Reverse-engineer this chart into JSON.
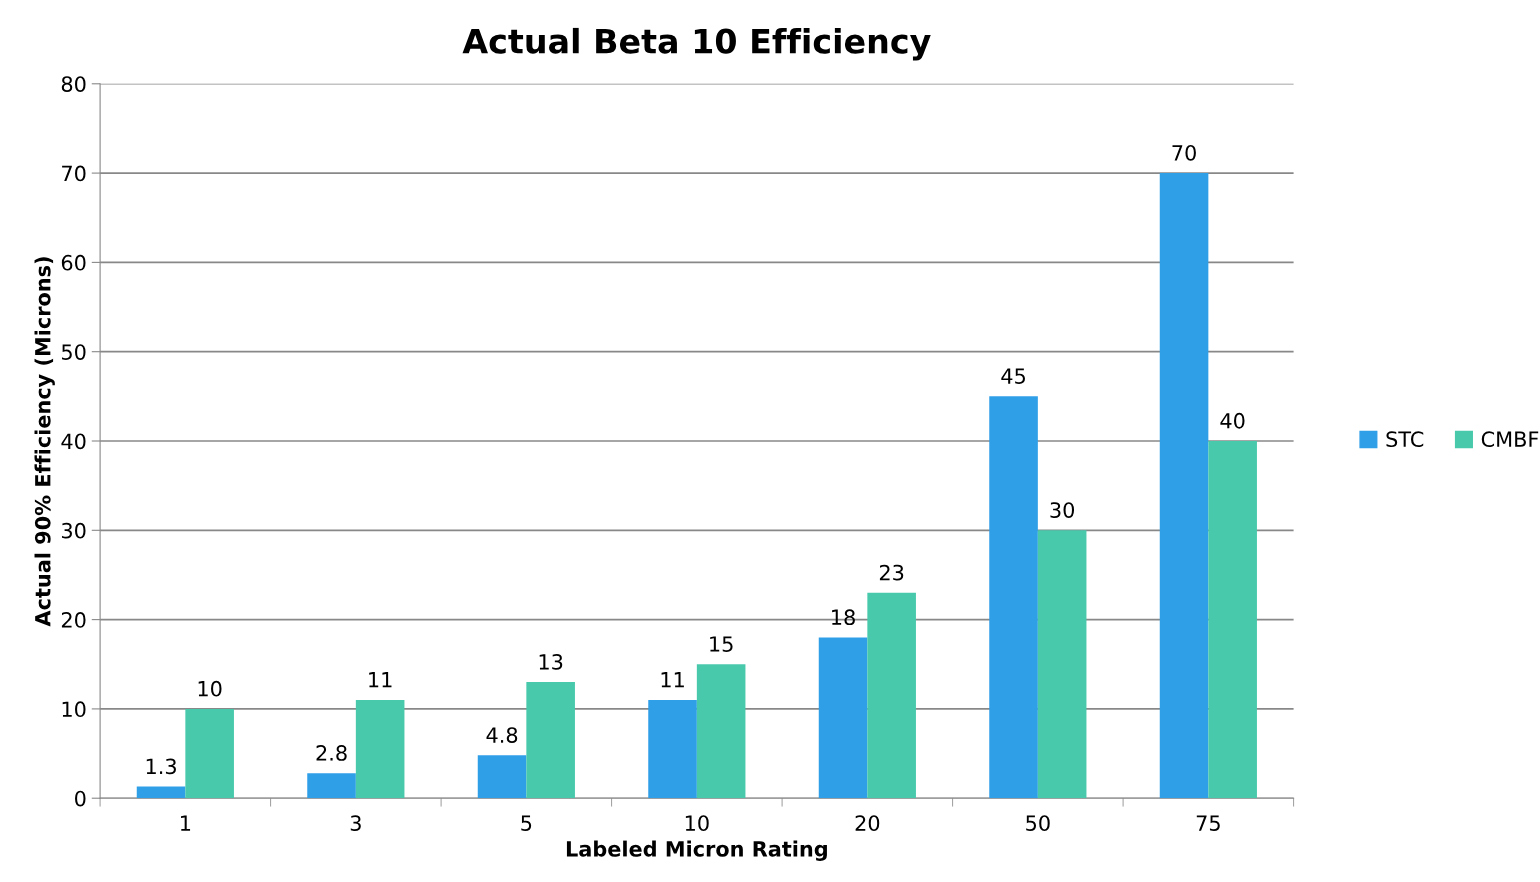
{
  "chart_data": {
    "type": "bar",
    "title": "Actual Beta 10 Efficiency",
    "xlabel": "Labeled Micron Rating",
    "ylabel": "Actual 90% Efficiency (Microns)",
    "categories": [
      "1",
      "3",
      "5",
      "10",
      "20",
      "50",
      "75"
    ],
    "series": [
      {
        "name": "STC",
        "color": "#2f9fe8",
        "values": [
          1.3,
          2.8,
          4.8,
          11,
          18,
          45,
          70
        ]
      },
      {
        "name": "CMBF",
        "color": "#48c9ac",
        "values": [
          10,
          11,
          13,
          15,
          23,
          30,
          40
        ]
      }
    ],
    "ylim": [
      0,
      80
    ],
    "yticks": [
      0,
      10,
      20,
      30,
      40,
      50,
      60,
      70,
      80
    ],
    "grid": "y",
    "legend": "right",
    "data_labels": true
  }
}
